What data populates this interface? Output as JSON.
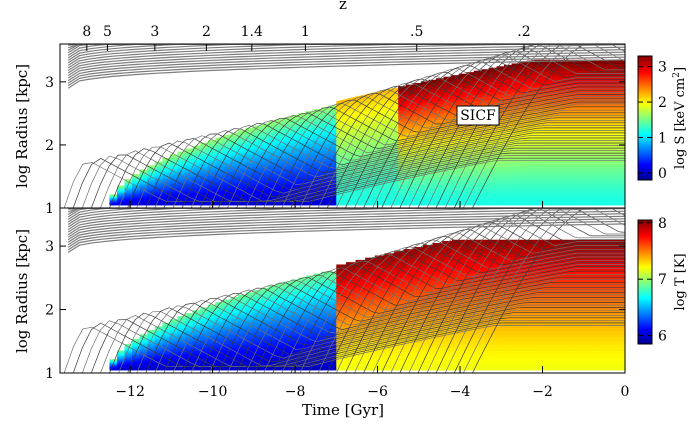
{
  "chart_data": [
    {
      "type": "heatmap",
      "panel": "top",
      "quantity": "entropy",
      "ylabel": "log Radius [kpc]",
      "xlim": [
        -13.7,
        0
      ],
      "ylim": [
        1,
        3.6
      ],
      "yticks": [
        1,
        2,
        3
      ],
      "colorbar": {
        "label": "log S [keV cm",
        "label_sup": "2",
        "label_end": "]",
        "range": [
          -0.2,
          3.3
        ],
        "ticks": [
          0,
          1,
          2,
          3
        ]
      },
      "annotation": "SICF",
      "regions": [
        {
          "t_start": -12.5,
          "t_end": -7.0,
          "log_r_range": [
            1.05,
            2.7
          ],
          "log_S_range": [
            0.1,
            1.6
          ]
        },
        {
          "t_start": -7.0,
          "t_end": -5.5,
          "log_r_range": [
            1.05,
            2.9
          ],
          "log_S_range": [
            1.2,
            2.2
          ]
        },
        {
          "t_start": -5.5,
          "t_end": 0,
          "log_r_range": [
            1.05,
            3.35
          ],
          "log_S_range": [
            1.2,
            3.3
          ]
        }
      ],
      "top_axis": {
        "label": "z",
        "ticks": [
          "8",
          "5",
          "3",
          "2",
          "1.4",
          "1",
          ".5",
          ".2"
        ],
        "tick_times_gyr": [
          -13.05,
          -12.55,
          -11.4,
          -10.15,
          -9.05,
          -7.75,
          -5.05,
          -2.45
        ]
      }
    },
    {
      "type": "heatmap",
      "panel": "bottom",
      "quantity": "temperature",
      "xlabel": "Time [Gyr]",
      "ylabel": "log Radius [kpc]",
      "xlim": [
        -13.7,
        0
      ],
      "xticks": [
        -12,
        -10,
        -8,
        -6,
        -4,
        -2,
        0
      ],
      "xtick_labels": [
        "−12",
        "−10",
        "−8",
        "−6",
        "−4",
        "−2",
        "0"
      ],
      "ylim": [
        1,
        3.6
      ],
      "yticks": [
        1,
        2,
        3
      ],
      "colorbar": {
        "label": "log T [K]",
        "range": [
          5.85,
          8.05
        ],
        "ticks": [
          6,
          7,
          8
        ]
      },
      "regions": [
        {
          "t_start": -12.5,
          "t_end": -7.0,
          "log_r_range": [
            1.05,
            2.6
          ],
          "log_T_range": [
            6.0,
            6.9
          ]
        },
        {
          "t_start": -7.0,
          "t_end": 0,
          "log_r_range": [
            1.05,
            3.1
          ],
          "log_T_range": [
            7.2,
            8.0
          ]
        }
      ]
    }
  ]
}
